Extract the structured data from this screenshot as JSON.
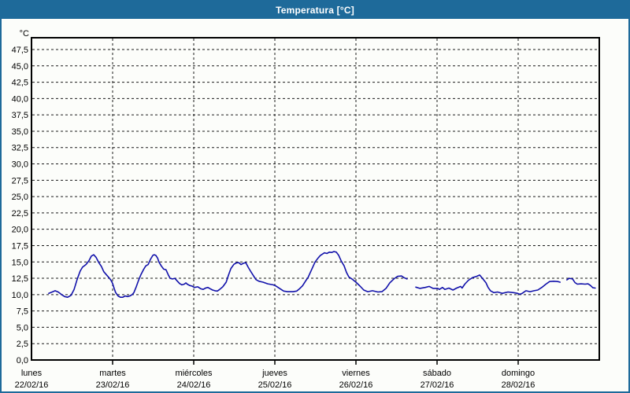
{
  "window": {
    "title": "Temperatura [°C]"
  },
  "colors": {
    "titlebar_bg": "#1E6A9A",
    "titlebar_text": "#FFFFFF",
    "window_border": "#1E6A9A",
    "chart_bg": "#FCFDFA",
    "grid": "#1a1a1a",
    "axis": "#000000",
    "line": "#1111AA",
    "text": "#000000"
  },
  "y_axis": {
    "unit": "°C",
    "tick_labels": [
      "47,5",
      "45,0",
      "42,5",
      "40,0",
      "37,5",
      "35,0",
      "32,5",
      "30,0",
      "27,5",
      "25,0",
      "22,5",
      "20,0",
      "17,5",
      "15,0",
      "12,5",
      "10,0",
      "7,5",
      "5,0",
      "2,5",
      "0,0"
    ],
    "tick_values": [
      47.5,
      45,
      42.5,
      40,
      37.5,
      35,
      32.5,
      30,
      27.5,
      25,
      22.5,
      20,
      17.5,
      15,
      12.5,
      10,
      7.5,
      5,
      2.5,
      0
    ],
    "min": 0,
    "max": 47.5,
    "step": 2.5
  },
  "x_axis": {
    "days": [
      {
        "name": "lunes",
        "date": "22/02/16"
      },
      {
        "name": "martes",
        "date": "23/02/16"
      },
      {
        "name": "miércoles",
        "date": "24/02/16"
      },
      {
        "name": "jueves",
        "date": "25/02/16"
      },
      {
        "name": "viernes",
        "date": "26/02/16"
      },
      {
        "name": "sábado",
        "date": "27/02/16"
      },
      {
        "name": "domingo",
        "date": "28/02/16"
      }
    ]
  },
  "chart_data": {
    "type": "line",
    "title": "Temperatura [°C]",
    "ylabel": "°C",
    "xlabel": "",
    "x_unit": "hours since lunes 22/02/16 00:00",
    "x_range_hours": [
      0,
      168
    ],
    "ylim": [
      0,
      49.3
    ],
    "grid": "dashed",
    "legend": "none",
    "series": [
      {
        "name": "Temperatura",
        "color": "#1111AA",
        "segments": [
          [
            [
              5.1,
              10.2
            ],
            [
              6.1,
              10.4
            ],
            [
              7.0,
              10.6
            ],
            [
              7.9,
              10.4
            ],
            [
              8.9,
              10.0
            ],
            [
              9.8,
              9.7
            ],
            [
              10.7,
              9.6
            ],
            [
              11.7,
              9.9
            ],
            [
              12.6,
              10.8
            ],
            [
              13.5,
              12.3
            ],
            [
              14.4,
              13.6
            ],
            [
              15.1,
              14.2
            ],
            [
              16.1,
              14.6
            ],
            [
              17.0,
              15.2
            ],
            [
              17.7,
              15.9
            ],
            [
              18.4,
              16.1
            ],
            [
              19.1,
              15.7
            ],
            [
              19.8,
              15.0
            ],
            [
              20.7,
              14.3
            ],
            [
              21.4,
              13.5
            ],
            [
              22.4,
              12.9
            ],
            [
              23.1,
              12.5
            ],
            [
              23.5,
              12.2
            ],
            [
              24.0,
              11.7
            ],
            [
              24.5,
              10.9
            ],
            [
              24.9,
              10.3
            ],
            [
              25.6,
              9.8
            ],
            [
              26.3,
              9.6
            ],
            [
              27.0,
              9.6
            ],
            [
              27.7,
              9.8
            ],
            [
              28.4,
              9.7
            ],
            [
              29.1,
              9.8
            ],
            [
              29.8,
              10.0
            ],
            [
              30.3,
              10.3
            ],
            [
              31.0,
              11.2
            ],
            [
              31.7,
              12.2
            ],
            [
              32.4,
              13.1
            ],
            [
              33.1,
              13.8
            ],
            [
              33.8,
              14.4
            ],
            [
              34.5,
              14.6
            ],
            [
              35.2,
              15.4
            ],
            [
              35.9,
              16.0
            ],
            [
              36.3,
              16.1
            ],
            [
              36.8,
              16.0
            ],
            [
              37.3,
              15.6
            ],
            [
              37.7,
              15.0
            ],
            [
              38.4,
              14.4
            ],
            [
              39.1,
              13.9
            ],
            [
              39.8,
              13.8
            ],
            [
              40.5,
              13.0
            ],
            [
              41.0,
              12.5
            ],
            [
              41.7,
              12.4
            ],
            [
              42.4,
              12.5
            ],
            [
              43.1,
              12.1
            ],
            [
              43.8,
              11.7
            ],
            [
              44.5,
              11.5
            ],
            [
              45.2,
              11.6
            ],
            [
              45.7,
              11.8
            ],
            [
              46.1,
              11.6
            ],
            [
              46.8,
              11.4
            ],
            [
              47.5,
              11.3
            ],
            [
              48.2,
              11.1
            ],
            [
              49.2,
              11.2
            ],
            [
              50.1,
              10.9
            ],
            [
              50.8,
              10.8
            ],
            [
              51.5,
              11.0
            ],
            [
              52.2,
              11.1
            ],
            [
              52.9,
              10.9
            ],
            [
              53.6,
              10.7
            ],
            [
              54.3,
              10.6
            ],
            [
              55.0,
              10.55
            ],
            [
              55.7,
              10.8
            ],
            [
              56.6,
              11.2
            ],
            [
              57.6,
              11.9
            ],
            [
              58.3,
              13.0
            ],
            [
              59.0,
              14.0
            ],
            [
              59.9,
              14.65
            ],
            [
              60.6,
              14.85
            ],
            [
              61.3,
              14.9
            ],
            [
              62.0,
              14.6
            ],
            [
              62.7,
              14.8
            ],
            [
              63.4,
              14.9
            ],
            [
              64.1,
              14.2
            ],
            [
              64.8,
              13.6
            ],
            [
              65.7,
              12.85
            ],
            [
              66.4,
              12.3
            ],
            [
              67.3,
              12.05
            ],
            [
              68.5,
              11.9
            ],
            [
              69.9,
              11.65
            ],
            [
              71.5,
              11.5
            ],
            [
              72.2,
              11.35
            ],
            [
              73.4,
              10.95
            ],
            [
              74.6,
              10.55
            ],
            [
              75.7,
              10.45
            ],
            [
              77.4,
              10.45
            ],
            [
              78.5,
              10.55
            ],
            [
              79.2,
              10.85
            ],
            [
              80.2,
              11.35
            ],
            [
              81.1,
              12.1
            ],
            [
              81.8,
              12.6
            ],
            [
              82.5,
              13.4
            ],
            [
              83.2,
              14.2
            ],
            [
              83.9,
              15.0
            ],
            [
              84.8,
              15.6
            ],
            [
              85.5,
              16.0
            ],
            [
              86.7,
              16.4
            ],
            [
              87.4,
              16.3
            ],
            [
              88.1,
              16.5
            ],
            [
              88.8,
              16.45
            ],
            [
              89.5,
              16.6
            ],
            [
              90.2,
              16.5
            ],
            [
              90.9,
              16.0
            ],
            [
              91.6,
              15.2
            ],
            [
              92.5,
              14.4
            ],
            [
              93.2,
              13.4
            ],
            [
              93.9,
              12.7
            ],
            [
              94.8,
              12.4
            ],
            [
              96.0,
              11.9
            ],
            [
              97.2,
              11.3
            ],
            [
              98.3,
              10.7
            ],
            [
              99.5,
              10.45
            ],
            [
              100.9,
              10.6
            ],
            [
              102.5,
              10.4
            ],
            [
              103.7,
              10.45
            ],
            [
              104.9,
              10.95
            ],
            [
              106.0,
              11.8
            ],
            [
              107.2,
              12.4
            ],
            [
              108.3,
              12.8
            ],
            [
              109.5,
              12.85
            ],
            [
              110.2,
              12.6
            ],
            [
              111.1,
              12.4
            ]
          ],
          [
            [
              113.7,
              11.15
            ],
            [
              114.9,
              10.95
            ],
            [
              116.5,
              11.1
            ],
            [
              117.7,
              11.25
            ],
            [
              118.8,
              10.95
            ],
            [
              120.2,
              10.95
            ],
            [
              120.7,
              10.8
            ],
            [
              121.6,
              11.1
            ],
            [
              122.3,
              10.8
            ],
            [
              123.5,
              11.0
            ],
            [
              124.7,
              10.7
            ],
            [
              125.8,
              11.0
            ],
            [
              127.0,
              11.25
            ],
            [
              127.4,
              11.0
            ],
            [
              128.2,
              11.6
            ],
            [
              129.3,
              12.2
            ],
            [
              130.5,
              12.6
            ],
            [
              131.7,
              12.8
            ],
            [
              132.6,
              13.0
            ],
            [
              133.5,
              12.45
            ],
            [
              134.5,
              11.8
            ],
            [
              135.1,
              11.1
            ],
            [
              135.8,
              10.6
            ],
            [
              136.8,
              10.3
            ],
            [
              137.9,
              10.4
            ],
            [
              139.3,
              10.2
            ],
            [
              141.0,
              10.4
            ],
            [
              142.6,
              10.3
            ],
            [
              143.8,
              10.2
            ],
            [
              144.5,
              10.05
            ],
            [
              145.2,
              10.2
            ],
            [
              146.3,
              10.6
            ],
            [
              147.5,
              10.45
            ],
            [
              148.7,
              10.6
            ],
            [
              149.8,
              10.7
            ],
            [
              151.0,
              11.1
            ],
            [
              152.2,
              11.6
            ],
            [
              153.3,
              12.0
            ],
            [
              154.5,
              12.05
            ],
            [
              155.7,
              12.0
            ],
            [
              156.4,
              11.9
            ]
          ],
          [
            [
              158.4,
              12.25
            ],
            [
              159.1,
              12.5
            ],
            [
              160.1,
              12.4
            ],
            [
              160.8,
              11.85
            ],
            [
              161.5,
              11.6
            ],
            [
              162.6,
              11.65
            ],
            [
              163.8,
              11.6
            ],
            [
              164.7,
              11.65
            ],
            [
              165.4,
              11.4
            ],
            [
              166.1,
              11.05
            ],
            [
              166.8,
              11.0
            ]
          ]
        ]
      }
    ]
  }
}
